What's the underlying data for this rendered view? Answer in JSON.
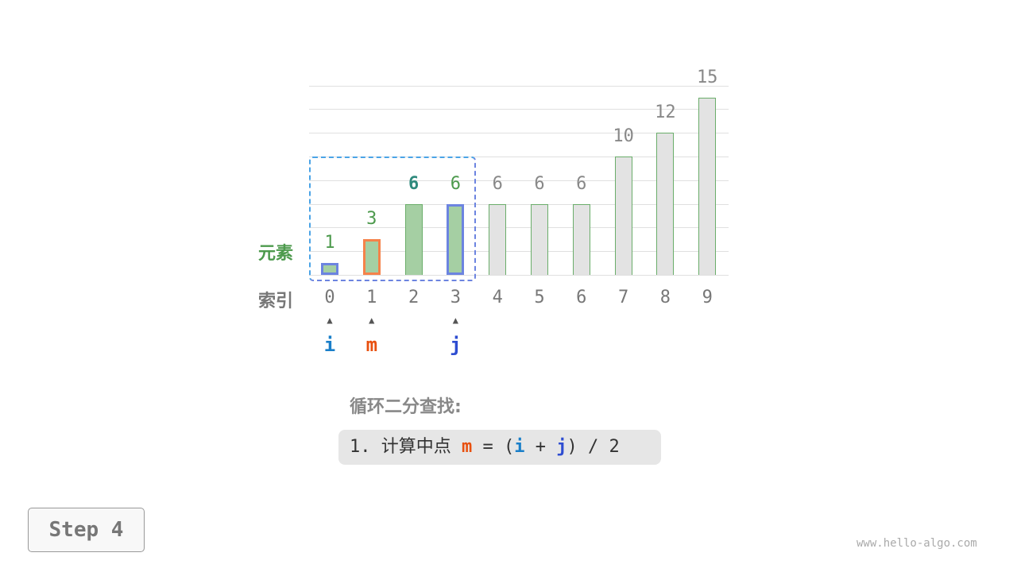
{
  "labels": {
    "element": "元素",
    "index": "索引"
  },
  "chart_data": {
    "type": "bar",
    "categories": [
      "0",
      "1",
      "2",
      "3",
      "4",
      "5",
      "6",
      "7",
      "8",
      "9"
    ],
    "values": [
      1,
      3,
      6,
      6,
      6,
      6,
      6,
      10,
      12,
      15
    ],
    "ylim": [
      0,
      16
    ],
    "grid": true,
    "search_range": [
      0,
      3
    ],
    "highlighted_value_index": 2
  },
  "pointers": [
    {
      "name": "i",
      "index": 0,
      "color": "#1a7fc9"
    },
    {
      "name": "m",
      "index": 1,
      "color": "#e8500f"
    },
    {
      "name": "j",
      "index": 3,
      "color": "#2e4dd1"
    }
  ],
  "colors": {
    "in_range": "#a5cfa3",
    "out_range": "#e3e3e3",
    "bar_border": "#6aad6a",
    "i_border": "#6c84e0",
    "m_border": "#f5824a",
    "j_border": "#6c84e0",
    "value_green": "#4d9a4d",
    "value_teal": "#2f8a7d"
  },
  "step": {
    "title": "循环二分查找:",
    "formula_prefix": "1. 计算中点 ",
    "m": "m",
    "eq": " = (",
    "i": "i",
    "plus": " + ",
    "j": "j",
    "suffix": ") / 2"
  },
  "step_button": "Step 4",
  "watermark": "www.hello-algo.com"
}
